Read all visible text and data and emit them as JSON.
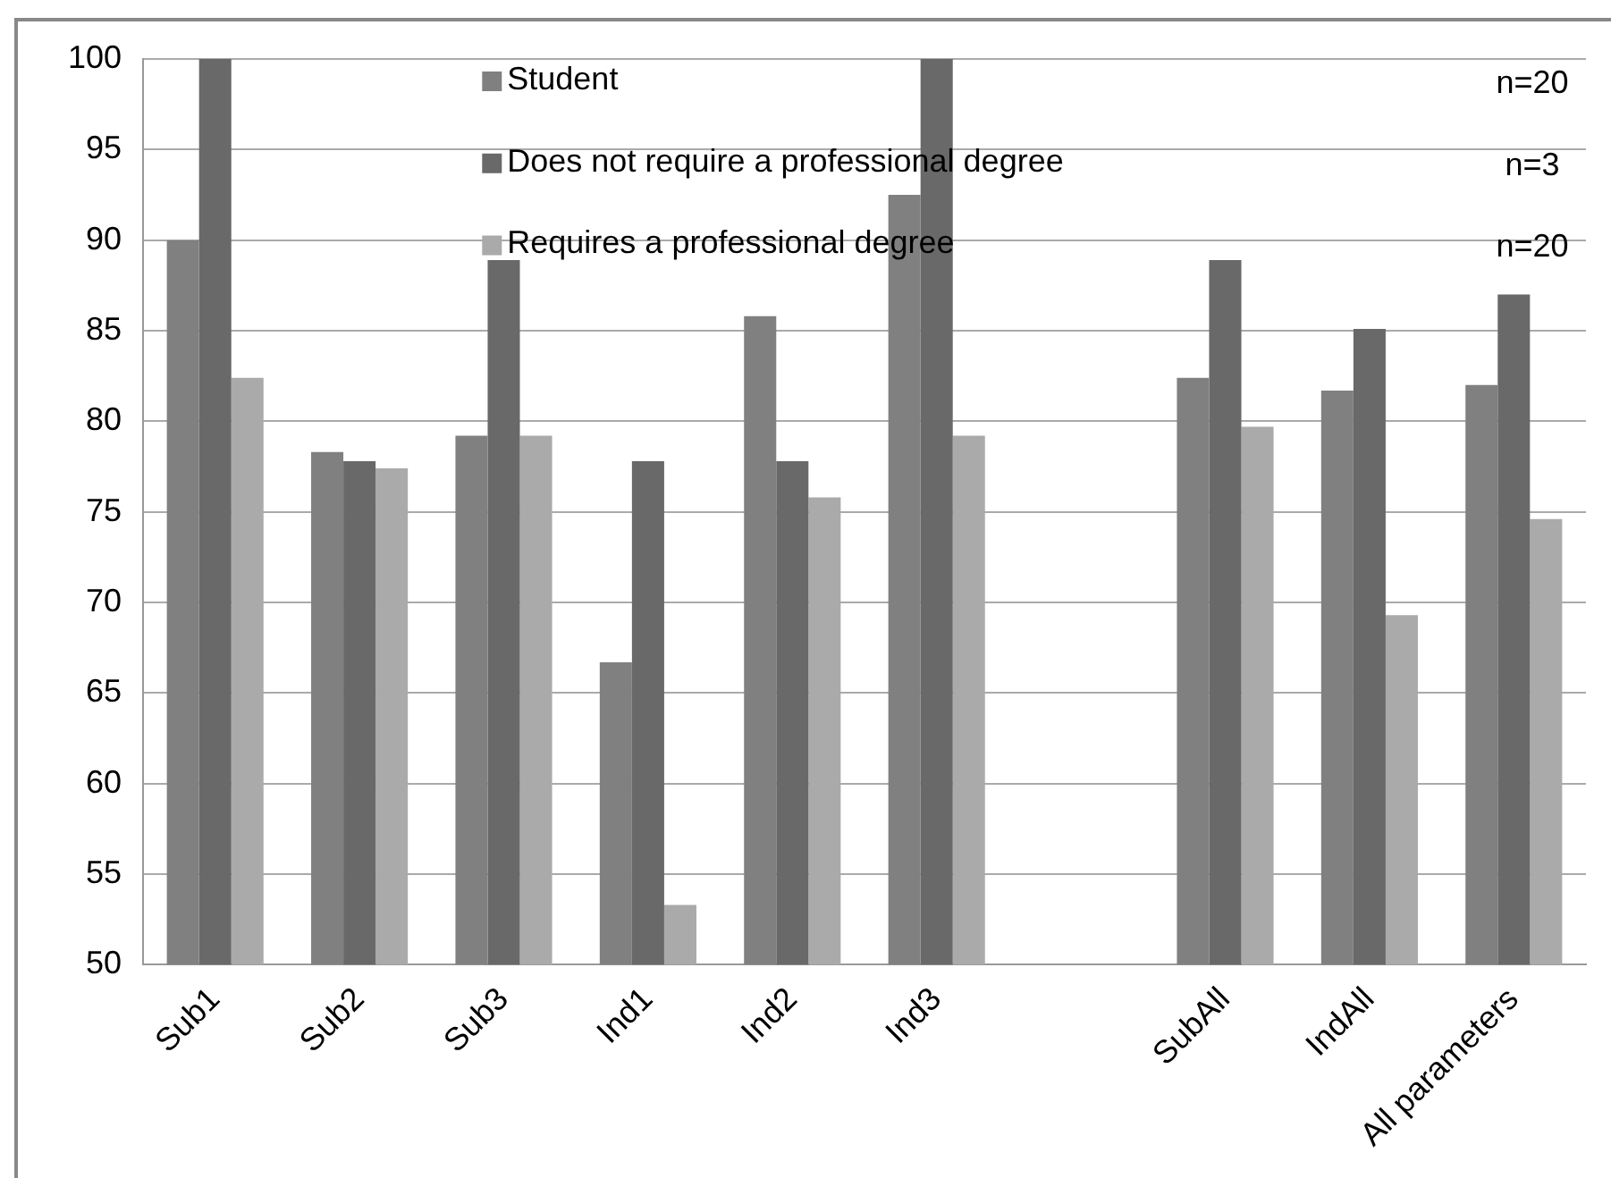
{
  "chart_data": {
    "type": "bar",
    "categories": [
      "Sub1",
      "Sub2",
      "Sub3",
      "Ind1",
      "Ind2",
      "Ind3",
      null,
      "SubAll",
      "IndAll",
      "All parameters"
    ],
    "series": [
      {
        "name": "Student",
        "color": "#808080",
        "values": [
          90,
          78.3,
          79.2,
          66.7,
          85.8,
          92.5,
          null,
          82.4,
          81.7,
          82.0
        ]
      },
      {
        "name": "Does not require a professional degree",
        "color": "#696969",
        "values": [
          100,
          77.8,
          88.9,
          77.8,
          77.8,
          100,
          null,
          88.9,
          85.1,
          87.0
        ]
      },
      {
        "name": "Requires a professional degree",
        "color": "#aaaaaa",
        "values": [
          82.4,
          77.4,
          79.2,
          53.3,
          75.8,
          79.2,
          null,
          79.7,
          69.3,
          74.6
        ]
      }
    ],
    "ylim": [
      50,
      100
    ],
    "yticks": [
      50,
      55,
      60,
      65,
      70,
      75,
      80,
      85,
      90,
      95,
      100
    ],
    "grid": "y",
    "legend": "top",
    "annotations": [
      "n=20",
      "n=3",
      "n=20"
    ]
  }
}
